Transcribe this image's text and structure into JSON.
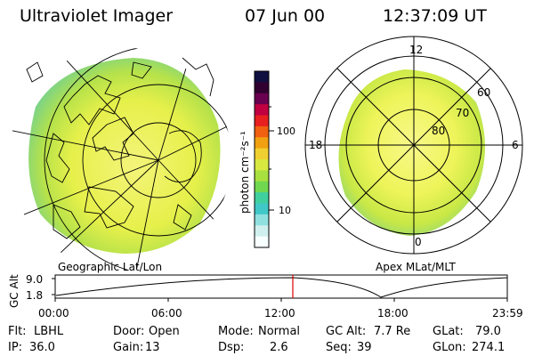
{
  "header": {
    "instrument": "Ultraviolet Imager",
    "date": "07 Jun 00",
    "time": "12:37:09 UT"
  },
  "left_panel": {
    "caption": "Geographic Lat/Lon"
  },
  "right_panel": {
    "caption": "Apex MLat/MLT",
    "mlt_labels": [
      "12",
      "18",
      "6",
      "0"
    ],
    "lat_labels": [
      "60",
      "70",
      "80"
    ]
  },
  "colorbar": {
    "unit_label": "photon cm⁻²s⁻¹",
    "tick_labels": [
      "100",
      "10"
    ],
    "colors": [
      "#101040",
      "#300030",
      "#6a0050",
      "#c00040",
      "#e82020",
      "#f06010",
      "#f0a010",
      "#f0d030",
      "#d8e840",
      "#a8e040",
      "#70d850",
      "#40d0a0",
      "#40c8c8",
      "#90e0e0",
      "#d0f0f0",
      "#f8ffff"
    ]
  },
  "timeline": {
    "axis_label": "GC Alt",
    "y_ticks": [
      "9.0",
      "1.8"
    ],
    "x_ticks": [
      "00:00",
      "06:00",
      "12:00",
      "18:00",
      "23:59"
    ],
    "marker_color": "#dd0000"
  },
  "status": {
    "flt_label": "Flt:",
    "flt_value": "LBHL",
    "ip_label": "IP:",
    "ip_value": "36.0",
    "door_label": "Door:",
    "door_value": "Open",
    "gain_label": "Gain:",
    "gain_value": "13",
    "mode_label": "Mode:",
    "mode_value": "Normal",
    "dsp_label": "Dsp:",
    "dsp_value": "2.6",
    "gcalt_label": "GC Alt:",
    "gcalt_value": "7.7 Re",
    "seq_label": "Seq:",
    "seq_value": "39",
    "glat_label": "GLat:",
    "glat_value": "79.0",
    "glon_label": "GLon:",
    "glon_value": "274.1"
  }
}
